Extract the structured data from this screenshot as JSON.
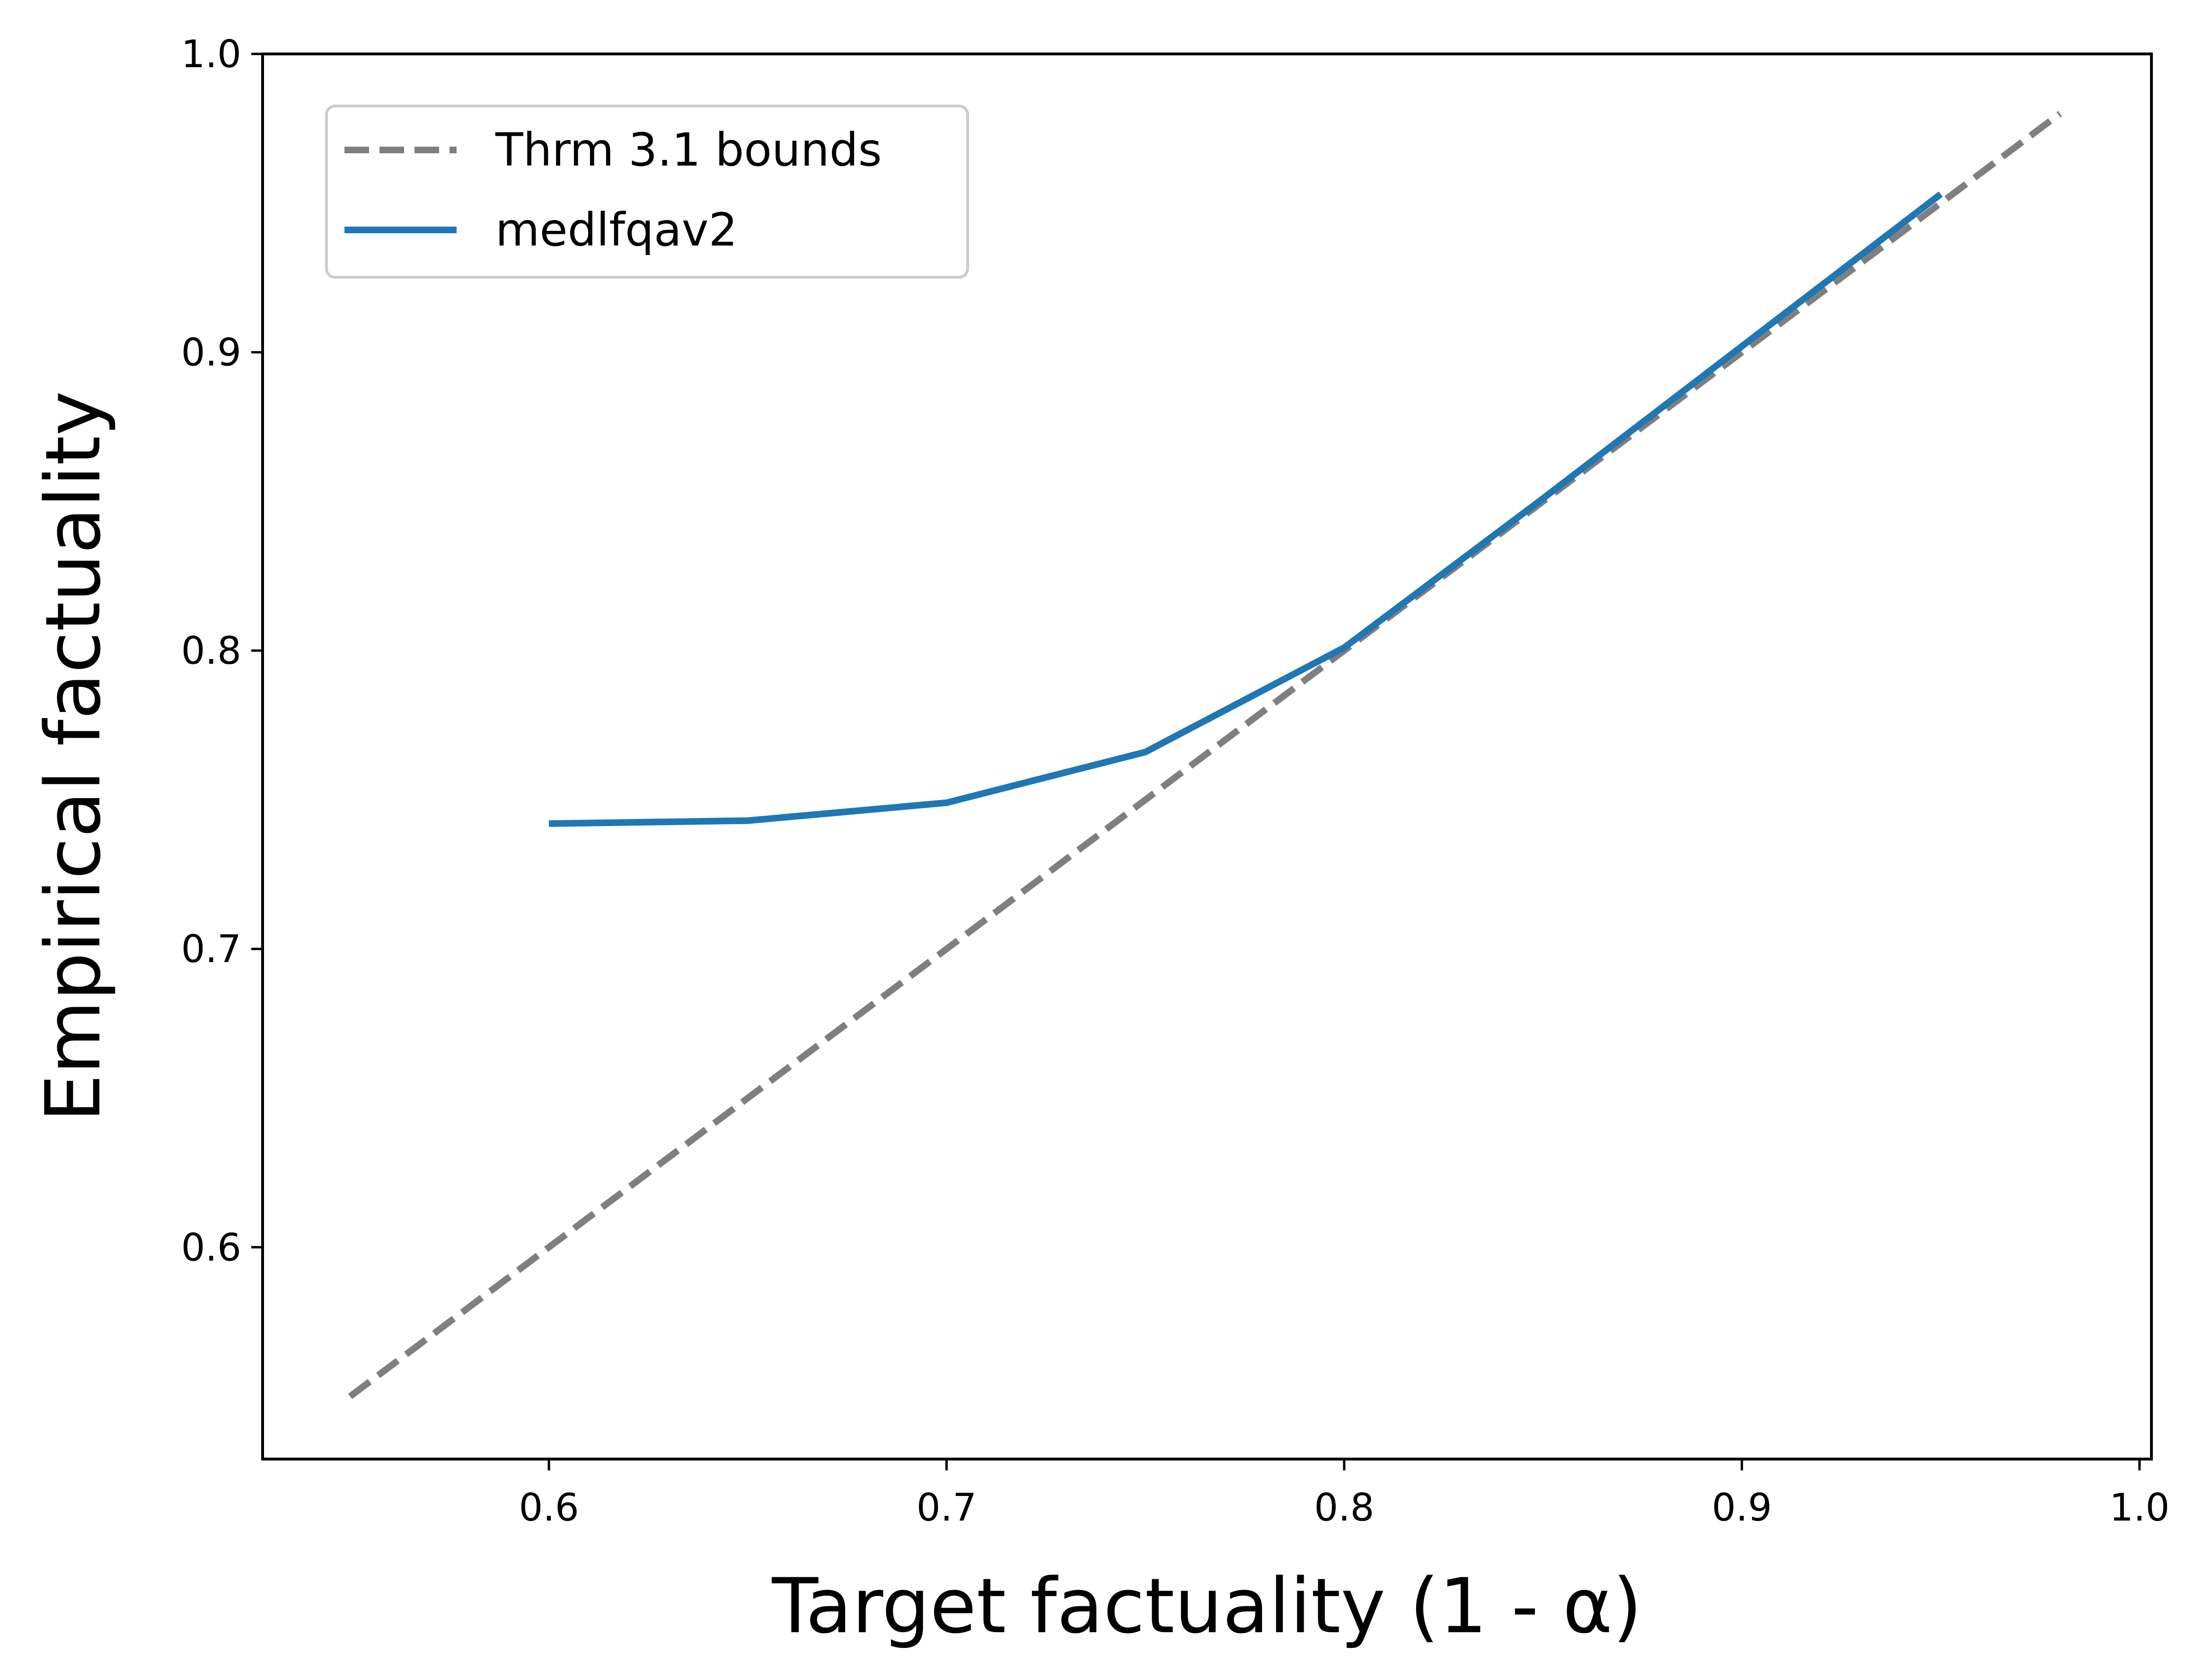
{
  "chart_data": {
    "type": "line",
    "xlabel": "Target factuality (1 - α)",
    "ylabel": "Empirical factuality",
    "xlim": [
      0.528,
      1.003
    ],
    "ylim": [
      0.529,
      1.0
    ],
    "xticks": [
      0.6,
      0.7,
      0.8,
      0.9,
      1.0
    ],
    "xtick_labels": [
      "0.6",
      "0.7",
      "0.8",
      "0.9",
      "1.0"
    ],
    "yticks": [
      0.6,
      0.7,
      0.8,
      0.9,
      1.0
    ],
    "ytick_labels": [
      "0.6",
      "0.7",
      "0.8",
      "0.9",
      "1.0"
    ],
    "grid": false,
    "legend_position": "upper-left",
    "series": [
      {
        "name": "Thrm 3.1 bounds",
        "style": "dashed",
        "color": "#7f7f7f",
        "x": [
          0.55,
          0.98
        ],
        "y": [
          0.55,
          0.98
        ]
      },
      {
        "name": "medlfqav2",
        "style": "solid",
        "color": "#1f77b4",
        "x": [
          0.6,
          0.65,
          0.7,
          0.75,
          0.8,
          0.85,
          0.9,
          0.95
        ],
        "y": [
          0.742,
          0.743,
          0.749,
          0.766,
          0.801,
          0.851,
          0.902,
          0.953
        ]
      }
    ]
  }
}
